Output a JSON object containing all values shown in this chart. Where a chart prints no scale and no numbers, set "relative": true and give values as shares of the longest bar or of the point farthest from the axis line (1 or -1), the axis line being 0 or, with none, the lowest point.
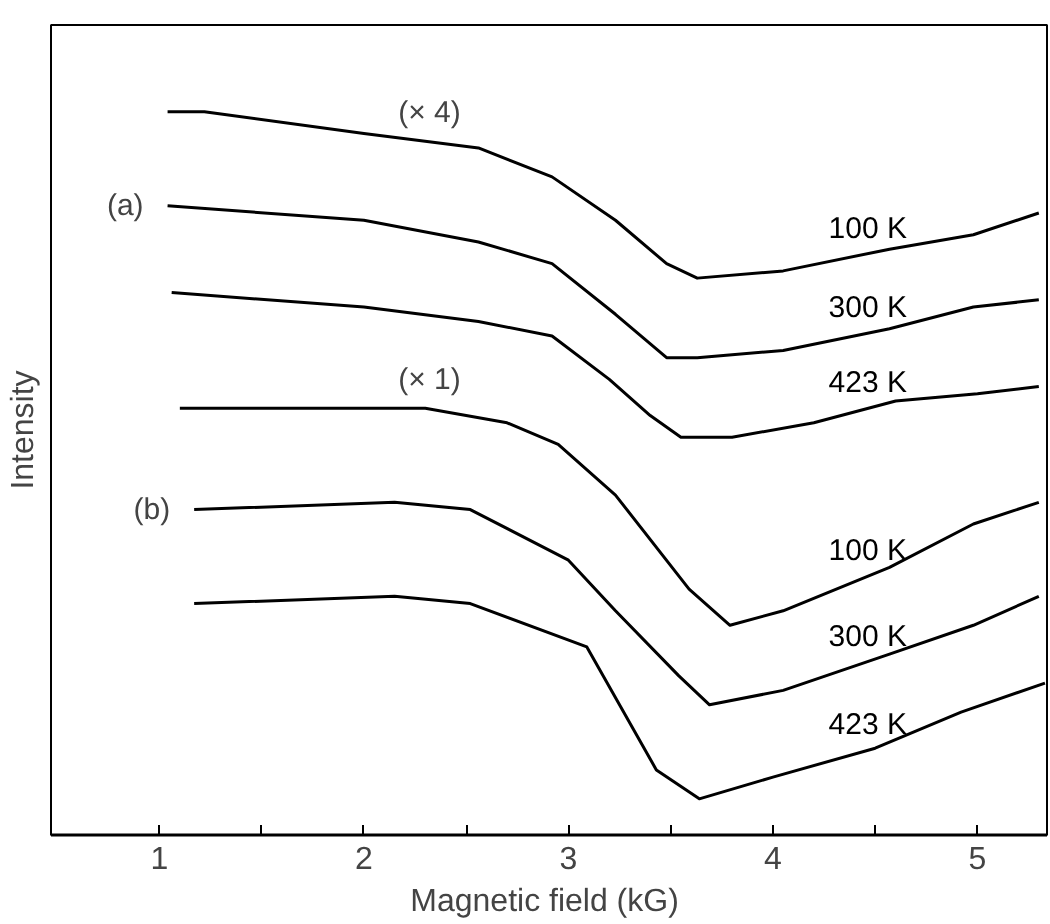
{
  "chart_data": {
    "type": "line",
    "xlabel": "Magnetic  field (kG)",
    "ylabel": "Intensity",
    "relative": true,
    "xlim": [
      0.47,
      5.34
    ],
    "xticks": [
      1,
      {
        "value": 1.5,
        "label": null
      },
      2,
      {
        "value": 2.5,
        "label": null
      },
      3,
      {
        "value": 3.5,
        "label": null
      },
      4,
      {
        "value": 4.5,
        "label": null
      },
      5
    ],
    "line_style": "solid",
    "grid": false,
    "series": [
      {
        "name": "100 K",
        "color": "#000000",
        "x": [
          1.04,
          1.22,
          2.0,
          2.56,
          2.92,
          3.23,
          3.48,
          3.63,
          4.05,
          4.57,
          4.98,
          5.3
        ],
        "values": [
          1.0,
          1.0,
          0.97,
          0.95,
          0.91,
          0.85,
          0.79,
          0.77,
          0.78,
          0.81,
          0.83,
          0.86
        ]
      },
      {
        "name": "300 K",
        "color": "#000000",
        "x": [
          1.04,
          2.0,
          2.56,
          2.92,
          3.23,
          3.48,
          3.63,
          4.05,
          4.57,
          4.98,
          5.3
        ],
        "values": [
          0.87,
          0.85,
          0.82,
          0.79,
          0.72,
          0.66,
          0.66,
          0.67,
          0.7,
          0.73,
          0.74
        ]
      },
      {
        "name": "423 K",
        "color": "#000000",
        "x": [
          1.06,
          2.0,
          2.56,
          2.92,
          3.2,
          3.4,
          3.55,
          3.8,
          4.2,
          4.6,
          5.0,
          5.3
        ],
        "values": [
          0.75,
          0.73,
          0.71,
          0.69,
          0.63,
          0.58,
          0.55,
          0.55,
          0.57,
          0.6,
          0.61,
          0.62
        ]
      },
      {
        "name": "100 K",
        "color": "#000000",
        "x": [
          1.1,
          1.7,
          2.3,
          2.7,
          2.95,
          3.23,
          3.59,
          3.79,
          4.05,
          4.57,
          4.98,
          5.3
        ],
        "values": [
          0.59,
          0.59,
          0.59,
          0.57,
          0.54,
          0.47,
          0.34,
          0.29,
          0.31,
          0.37,
          0.43,
          0.46
        ]
      },
      {
        "name": "300 K",
        "color": "#000000",
        "x": [
          1.17,
          2.15,
          2.52,
          3.0,
          3.23,
          3.54,
          3.69,
          4.05,
          4.57,
          4.98,
          5.3
        ],
        "values": [
          0.45,
          0.46,
          0.45,
          0.38,
          0.31,
          0.22,
          0.18,
          0.2,
          0.25,
          0.29,
          0.33
        ]
      },
      {
        "name": "423 K",
        "color": "#000000",
        "x": [
          1.17,
          2.15,
          2.52,
          3.09,
          3.43,
          3.64,
          4.0,
          4.5,
          4.92,
          5.33
        ],
        "values": [
          0.32,
          0.33,
          0.32,
          0.26,
          0.09,
          0.05,
          0.08,
          0.12,
          0.17,
          0.21
        ]
      }
    ],
    "annotations": [
      "(× 4)",
      "(a)",
      "(× 1)",
      "(b)"
    ]
  }
}
